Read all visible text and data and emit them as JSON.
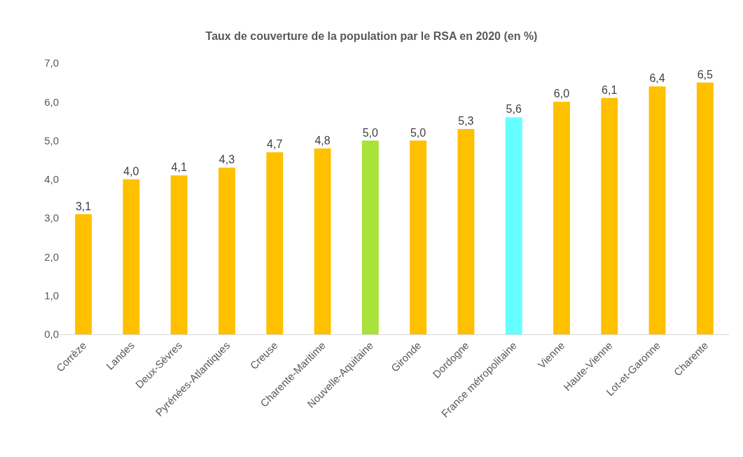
{
  "chart_data": {
    "type": "bar",
    "title": "Taux de couverture de la population par le RSA en 2020 (en %)",
    "categories": [
      "Corrèze",
      "Landes",
      "Deux-Sèvres",
      "Pyrénées-Atlantiques",
      "Creuse",
      "Charente-Maritime",
      "Nouvelle-Aquitaine",
      "Gironde",
      "Dordogne",
      "France métropolitaine",
      "Vienne",
      "Haute-Vienne",
      "Lot-et-Garonne",
      "Charente"
    ],
    "values": [
      3.1,
      4.0,
      4.1,
      4.3,
      4.7,
      4.8,
      5.0,
      5.0,
      5.3,
      5.6,
      6.0,
      6.1,
      6.4,
      6.5
    ],
    "colors": [
      "#ffc000",
      "#ffc000",
      "#ffc000",
      "#ffc000",
      "#ffc000",
      "#ffc000",
      "#a9e23a",
      "#ffc000",
      "#ffc000",
      "#66ffff",
      "#ffc000",
      "#ffc000",
      "#ffc000",
      "#ffc000"
    ],
    "value_labels": [
      "3,1",
      "4,0",
      "4,1",
      "4,3",
      "4,7",
      "4,8",
      "5,0",
      "5,0",
      "5,3",
      "5,6",
      "6,0",
      "6,1",
      "6,4",
      "6,5"
    ],
    "ylim": [
      0,
      7
    ],
    "yticks": [
      {
        "value": 0,
        "label": "0,0"
      },
      {
        "value": 1,
        "label": "1,0"
      },
      {
        "value": 2,
        "label": "2,0"
      },
      {
        "value": 3,
        "label": "3,0"
      },
      {
        "value": 4,
        "label": "4,0"
      },
      {
        "value": 5,
        "label": "5,0"
      },
      {
        "value": 6,
        "label": "6,0"
      },
      {
        "value": 7,
        "label": "7,0"
      }
    ],
    "grid": false,
    "legend": false
  }
}
